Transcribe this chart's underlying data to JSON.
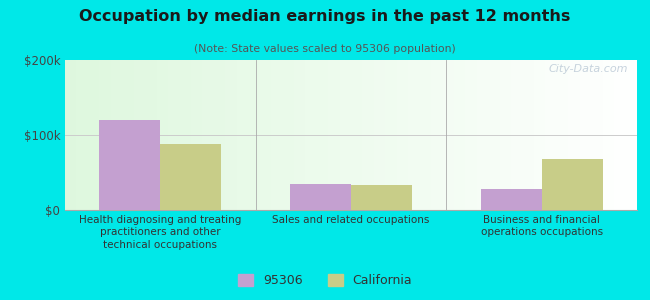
{
  "title": "Occupation by median earnings in the past 12 months",
  "subtitle": "(Note: State values scaled to 95306 population)",
  "categories": [
    "Health diagnosing and treating\npractitioners and other\ntechnical occupations",
    "Sales and related occupations",
    "Business and financial\noperations occupations"
  ],
  "values_95306": [
    120000,
    35000,
    28000
  ],
  "values_california": [
    88000,
    33000,
    68000
  ],
  "color_95306": "#c4a0d0",
  "color_california": "#c8cd88",
  "ylim": [
    0,
    200000
  ],
  "yticks": [
    0,
    100000,
    200000
  ],
  "ytick_labels": [
    "$0",
    "$100k",
    "$200k"
  ],
  "legend_labels": [
    "95306",
    "California"
  ],
  "bar_width": 0.32,
  "outer_background": "#00e8e8",
  "watermark": "City-Data.com",
  "title_color": "#1a1a1a",
  "subtitle_color": "#555555",
  "xlabel_color": "#333333"
}
